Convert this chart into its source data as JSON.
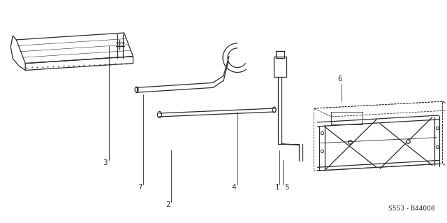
{
  "background_color": "#ffffff",
  "line_color": "#2a2a2a",
  "label_color": "#2a2a2a",
  "ref_code": "S5S3 - B44008",
  "figsize": [
    6.4,
    3.19
  ],
  "dpi": 100
}
